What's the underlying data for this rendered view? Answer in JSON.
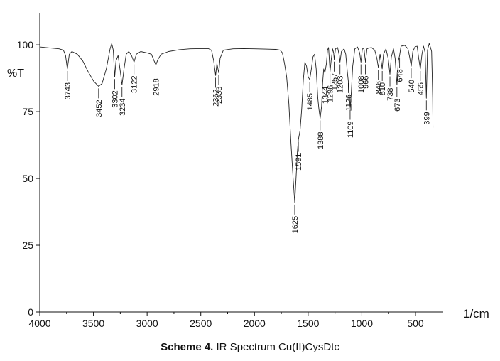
{
  "caption": {
    "label": "Scheme 4.",
    "text": "IR Spectrum Cu(II)CysDtc"
  },
  "chart_data": {
    "type": "line",
    "title": "",
    "xlabel": "1/cm",
    "ylabel": "%T",
    "xlim": [
      4000,
      330
    ],
    "ylim": [
      0,
      112
    ],
    "x_reversed": true,
    "grid": false,
    "x_ticks": [
      4000,
      3500,
      3000,
      2500,
      2000,
      1500,
      1000,
      500
    ],
    "y_ticks": [
      0,
      25,
      50,
      75,
      100
    ],
    "series": [
      {
        "color": "#222222",
        "points": [
          [
            4000,
            99.2
          ],
          [
            3900,
            98.8
          ],
          [
            3820,
            98.5
          ],
          [
            3780,
            98.0
          ],
          [
            3760,
            96.0
          ],
          [
            3743,
            91.0
          ],
          [
            3725,
            96.5
          ],
          [
            3700,
            97.5
          ],
          [
            3650,
            96.5
          ],
          [
            3600,
            94.0
          ],
          [
            3550,
            90.0
          ],
          [
            3500,
            86.5
          ],
          [
            3452,
            84.5
          ],
          [
            3420,
            85.5
          ],
          [
            3380,
            91.0
          ],
          [
            3345,
            98.5
          ],
          [
            3330,
            100.5
          ],
          [
            3315,
            98.0
          ],
          [
            3302,
            88.0
          ],
          [
            3290,
            94.0
          ],
          [
            3270,
            96.0
          ],
          [
            3250,
            90.0
          ],
          [
            3234,
            85.0
          ],
          [
            3215,
            91.0
          ],
          [
            3195,
            96.5
          ],
          [
            3170,
            97.5
          ],
          [
            3145,
            96.0
          ],
          [
            3122,
            93.5
          ],
          [
            3100,
            96.5
          ],
          [
            3060,
            97.5
          ],
          [
            3000,
            97.0
          ],
          [
            2960,
            96.5
          ],
          [
            2935,
            94.0
          ],
          [
            2918,
            92.5
          ],
          [
            2900,
            94.5
          ],
          [
            2870,
            96.5
          ],
          [
            2800,
            97.5
          ],
          [
            2700,
            98.2
          ],
          [
            2600,
            98.5
          ],
          [
            2500,
            98.6
          ],
          [
            2430,
            98.6
          ],
          [
            2400,
            98.0
          ],
          [
            2380,
            94.0
          ],
          [
            2362,
            88.5
          ],
          [
            2350,
            93.0
          ],
          [
            2340,
            91.0
          ],
          [
            2333,
            89.5
          ],
          [
            2320,
            95.0
          ],
          [
            2290,
            98.0
          ],
          [
            2200,
            98.5
          ],
          [
            2100,
            98.6
          ],
          [
            2000,
            98.5
          ],
          [
            1900,
            98.4
          ],
          [
            1800,
            98.3
          ],
          [
            1760,
            98.0
          ],
          [
            1740,
            97.0
          ],
          [
            1720,
            93.0
          ],
          [
            1700,
            88.0
          ],
          [
            1680,
            78.0
          ],
          [
            1660,
            63.0
          ],
          [
            1640,
            50.0
          ],
          [
            1625,
            41.0
          ],
          [
            1610,
            52.0
          ],
          [
            1600,
            60.0
          ],
          [
            1591,
            64.5
          ],
          [
            1575,
            68.0
          ],
          [
            1560,
            76.0
          ],
          [
            1545,
            87.0
          ],
          [
            1530,
            93.5
          ],
          [
            1515,
            92.0
          ],
          [
            1500,
            88.0
          ],
          [
            1485,
            87.0
          ],
          [
            1470,
            91.0
          ],
          [
            1455,
            95.5
          ],
          [
            1440,
            96.5
          ],
          [
            1425,
            91.0
          ],
          [
            1410,
            80.0
          ],
          [
            1400,
            76.0
          ],
          [
            1388,
            72.5
          ],
          [
            1375,
            77.0
          ],
          [
            1365,
            86.0
          ],
          [
            1355,
            91.0
          ],
          [
            1344,
            89.5
          ],
          [
            1330,
            93.0
          ],
          [
            1320,
            98.0
          ],
          [
            1310,
            99.0
          ],
          [
            1296,
            90.0
          ],
          [
            1285,
            94.5
          ],
          [
            1272,
            98.5
          ],
          [
            1262,
            97.0
          ],
          [
            1257,
            94.5
          ],
          [
            1245,
            98.5
          ],
          [
            1225,
            99.0
          ],
          [
            1210,
            96.0
          ],
          [
            1203,
            93.5
          ],
          [
            1190,
            97.5
          ],
          [
            1165,
            98.5
          ],
          [
            1150,
            96.5
          ],
          [
            1135,
            90.0
          ],
          [
            1126,
            86.5
          ],
          [
            1118,
            82.0
          ],
          [
            1109,
            76.5
          ],
          [
            1098,
            82.0
          ],
          [
            1085,
            92.0
          ],
          [
            1065,
            98.5
          ],
          [
            1040,
            99.2
          ],
          [
            1020,
            97.0
          ],
          [
            1008,
            93.5
          ],
          [
            995,
            98.5
          ],
          [
            980,
            98.5
          ],
          [
            966,
            93.5
          ],
          [
            952,
            98.5
          ],
          [
            935,
            98.8
          ],
          [
            910,
            99.0
          ],
          [
            880,
            98.0
          ],
          [
            860,
            95.0
          ],
          [
            846,
            91.5
          ],
          [
            830,
            96.5
          ],
          [
            820,
            94.0
          ],
          [
            810,
            91.0
          ],
          [
            798,
            96.5
          ],
          [
            775,
            98.5
          ],
          [
            755,
            95.0
          ],
          [
            738,
            89.0
          ],
          [
            725,
            95.5
          ],
          [
            705,
            98.5
          ],
          [
            690,
            95.0
          ],
          [
            673,
            85.0
          ],
          [
            660,
            94.0
          ],
          [
            648,
            96.0
          ],
          [
            635,
            99.5
          ],
          [
            600,
            99.8
          ],
          [
            570,
            98.5
          ],
          [
            555,
            95.5
          ],
          [
            540,
            92.0
          ],
          [
            525,
            97.5
          ],
          [
            505,
            99.2
          ],
          [
            485,
            99.5
          ],
          [
            470,
            95.0
          ],
          [
            455,
            91.0
          ],
          [
            440,
            96.5
          ],
          [
            425,
            99.5
          ],
          [
            410,
            97.0
          ],
          [
            399,
            80.0
          ],
          [
            388,
            98.0
          ],
          [
            372,
            100.5
          ],
          [
            360,
            99.0
          ],
          [
            350,
            97.5
          ],
          [
            345,
            90.0
          ],
          [
            340,
            80.0
          ],
          [
            337,
            69.0
          ]
        ]
      }
    ],
    "peak_labels": [
      {
        "text": "3743",
        "x": 3743,
        "y": 91.0
      },
      {
        "text": "3452",
        "x": 3452,
        "y": 84.5
      },
      {
        "text": "3302",
        "x": 3302,
        "y": 88.0
      },
      {
        "text": "3234",
        "x": 3234,
        "y": 85.0
      },
      {
        "text": "3122",
        "x": 3122,
        "y": 93.5
      },
      {
        "text": "2918",
        "x": 2918,
        "y": 92.5
      },
      {
        "text": "2362",
        "x": 2362,
        "y": 88.5
      },
      {
        "text": "2333",
        "x": 2333,
        "y": 89.5
      },
      {
        "text": "1625",
        "x": 1625,
        "y": 41.0
      },
      {
        "text": "1591",
        "x": 1591,
        "y": 64.5
      },
      {
        "text": "1485",
        "x": 1485,
        "y": 87.0
      },
      {
        "text": "1388",
        "x": 1388,
        "y": 72.5
      },
      {
        "text": "1344",
        "x": 1344,
        "y": 89.5
      },
      {
        "text": "1296",
        "x": 1296,
        "y": 90.0
      },
      {
        "text": "1257",
        "x": 1257,
        "y": 94.5
      },
      {
        "text": "1203",
        "x": 1203,
        "y": 93.5
      },
      {
        "text": "1126",
        "x": 1126,
        "y": 86.5
      },
      {
        "text": "1109",
        "x": 1109,
        "y": 76.5
      },
      {
        "text": "1008",
        "x": 1008,
        "y": 93.5
      },
      {
        "text": "966",
        "x": 966,
        "y": 93.5
      },
      {
        "text": "846",
        "x": 846,
        "y": 91.5
      },
      {
        "text": "810",
        "x": 810,
        "y": 91.0
      },
      {
        "text": "738",
        "x": 738,
        "y": 89.0
      },
      {
        "text": "673",
        "x": 673,
        "y": 85.0
      },
      {
        "text": "648",
        "x": 648,
        "y": 96.0
      },
      {
        "text": "540",
        "x": 540,
        "y": 92.0
      },
      {
        "text": "455",
        "x": 455,
        "y": 91.0
      },
      {
        "text": "399",
        "x": 399,
        "y": 80.0
      }
    ]
  }
}
